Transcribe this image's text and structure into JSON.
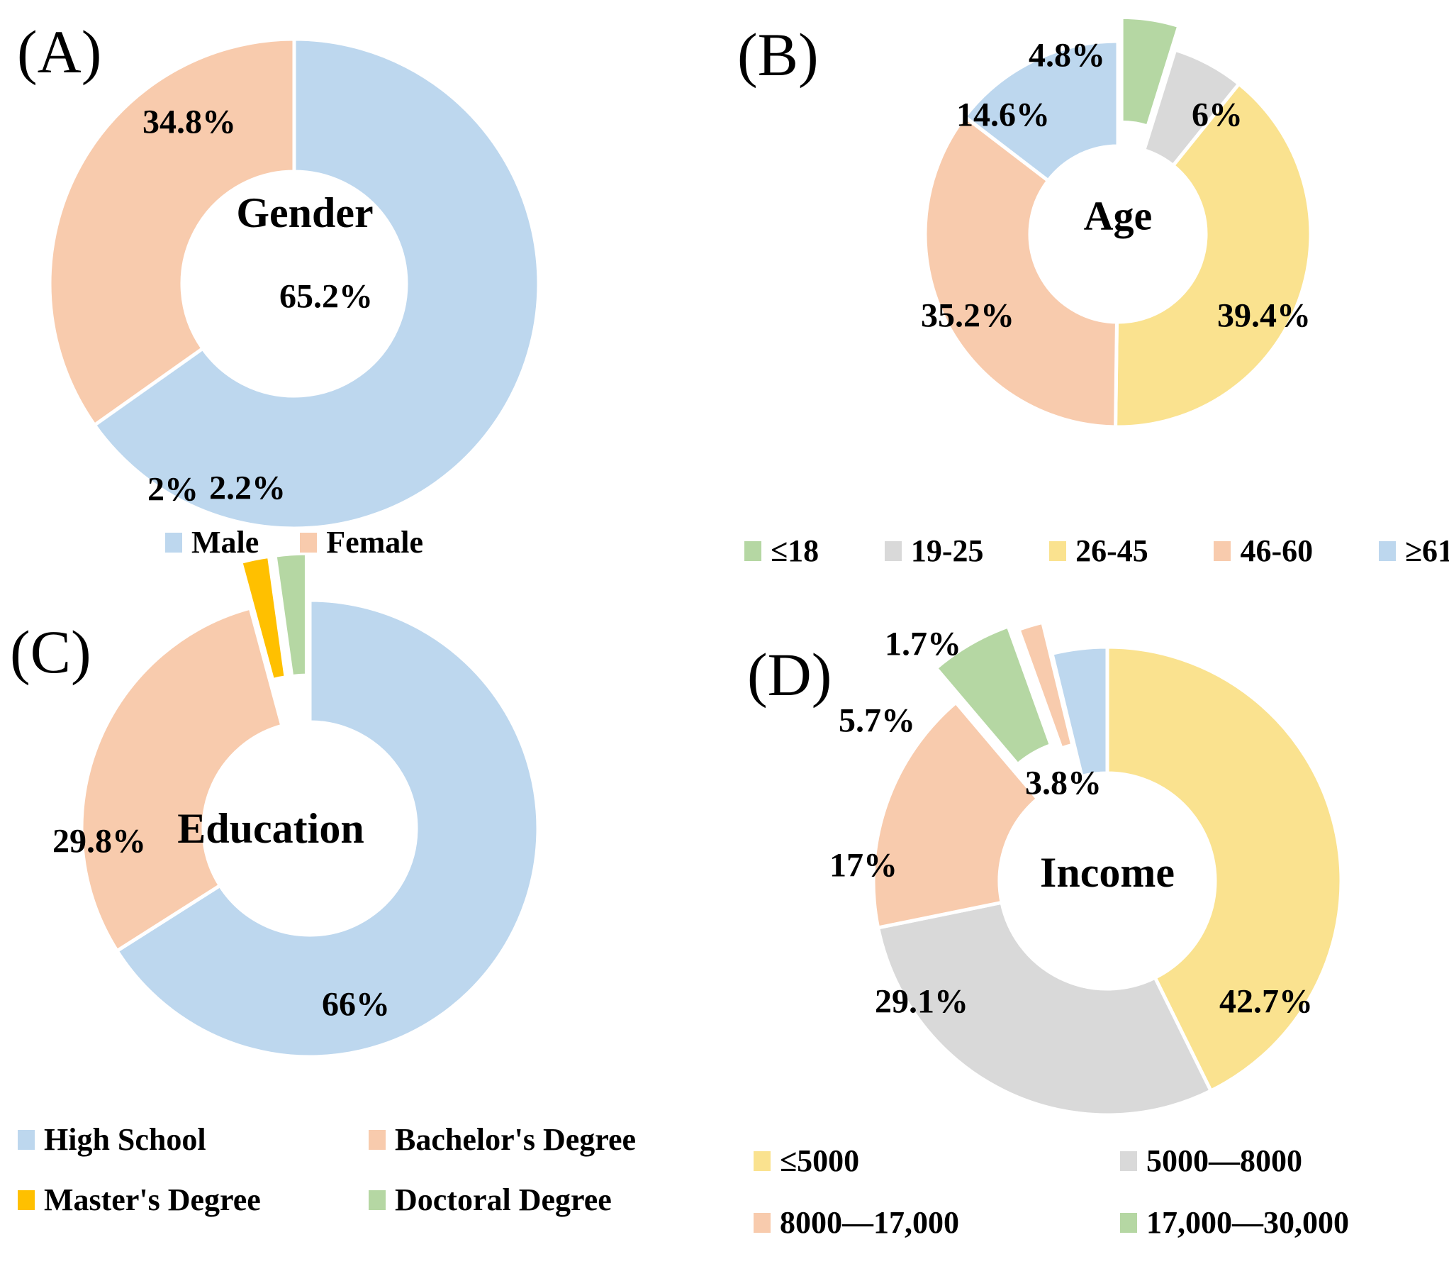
{
  "palette": {
    "blue": "#BDD7EE",
    "peach": "#F8CBAD",
    "yellow": "#FAE28F",
    "gray": "#D9D9D9",
    "green": "#B5D7A3",
    "gold": "#FFC000"
  },
  "chart_data": [
    {
      "panel": "(A)",
      "title": "Gender",
      "type": "donut",
      "slices": [
        {
          "name": "Male",
          "value": 65.2,
          "label": "65.2%",
          "color": "blue"
        },
        {
          "name": "Female",
          "value": 34.8,
          "label": "34.8%",
          "color": "peach"
        }
      ],
      "legend": {
        "position": "bottom-center",
        "rows": [
          [
            {
              "label": "Male",
              "color": "blue"
            },
            {
              "label": "Female",
              "color": "peach"
            }
          ]
        ]
      }
    },
    {
      "panel": "(B)",
      "title": "Age",
      "type": "donut",
      "slices": [
        {
          "name": "≤18",
          "value": 4.8,
          "label": "4.8%",
          "color": "green",
          "exploded": true
        },
        {
          "name": "19-25",
          "value": 6.0,
          "label": "6%",
          "color": "gray"
        },
        {
          "name": "26-45",
          "value": 39.4,
          "label": "39.4%",
          "color": "yellow"
        },
        {
          "name": "46-60",
          "value": 35.2,
          "label": "35.2%",
          "color": "peach"
        },
        {
          "name": "≥61",
          "value": 14.6,
          "label": "14.6%",
          "color": "blue"
        }
      ],
      "legend": {
        "position": "bottom-row",
        "rows": [
          [
            {
              "label": "≤18",
              "color": "green"
            },
            {
              "label": "19-25",
              "color": "gray"
            },
            {
              "label": "26-45",
              "color": "yellow"
            },
            {
              "label": "46-60",
              "color": "peach"
            },
            {
              "label": "≥61",
              "color": "blue"
            }
          ]
        ]
      }
    },
    {
      "panel": "(C)",
      "title": "Education",
      "type": "donut",
      "slices": [
        {
          "name": "High School",
          "value": 66.0,
          "label": "66%",
          "color": "blue"
        },
        {
          "name": "Bachelor's Degree",
          "value": 29.8,
          "label": "29.8%",
          "color": "peach"
        },
        {
          "name": "Master's Degree",
          "value": 2.0,
          "label": "2%",
          "color": "gold",
          "exploded": true
        },
        {
          "name": "Doctoral Degree",
          "value": 2.2,
          "label": "2.2%",
          "color": "green",
          "exploded": true
        }
      ],
      "legend": {
        "position": "bottom-grid",
        "rows": [
          [
            {
              "label": "High School",
              "color": "blue"
            },
            {
              "label": "Bachelor's Degree",
              "color": "peach"
            }
          ],
          [
            {
              "label": "Master's Degree",
              "color": "gold"
            },
            {
              "label": "Doctoral Degree",
              "color": "green"
            }
          ]
        ]
      }
    },
    {
      "panel": "(D)",
      "title": "Income",
      "type": "donut",
      "slices": [
        {
          "name": "≤5000",
          "value": 42.7,
          "label": "42.7%",
          "color": "yellow"
        },
        {
          "name": "5000—8000",
          "value": 29.1,
          "label": "29.1%",
          "color": "gray"
        },
        {
          "name": "8000—17,000",
          "value": 17.0,
          "label": "17%",
          "color": "peach"
        },
        {
          "name": "17,000—30,000",
          "value": 5.7,
          "label": "5.7%",
          "color": "green",
          "exploded": true
        },
        {
          "name": "",
          "value": 1.7,
          "label": "1.7%",
          "color": "peach",
          "exploded": true
        },
        {
          "name": "",
          "value": 3.8,
          "label": "3.8%",
          "color": "blue"
        }
      ],
      "legend": {
        "position": "bottom-grid",
        "rows": [
          [
            {
              "label": "≤5000",
              "color": "yellow"
            },
            {
              "label": "5000—8000",
              "color": "gray"
            }
          ],
          [
            {
              "label": "8000—17,000",
              "color": "peach"
            },
            {
              "label": "17,000—30,000",
              "color": "green"
            }
          ]
        ]
      }
    }
  ]
}
